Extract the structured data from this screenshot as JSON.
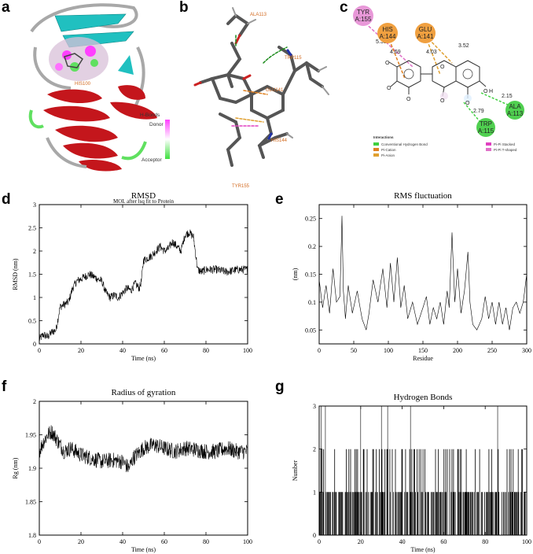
{
  "panel_letters": {
    "a": "a",
    "b": "b",
    "c": "c",
    "d": "d",
    "e": "e",
    "f": "f",
    "g": "g"
  },
  "panel_a": {
    "hbonds_title": "H-Bonds",
    "donor_label": "Donor",
    "acceptor_label": "Acceptor",
    "colors": {
      "helix": "#c4161c",
      "sheet": "#20c0c0",
      "coil": "#a8a8a8",
      "donor": "#ff40ff",
      "acceptor": "#40e040"
    }
  },
  "panel_b": {
    "residue_labels": [
      "ALA113",
      "TRP115",
      "GLU141",
      "HIS144",
      "TYR155"
    ]
  },
  "panel_c": {
    "residues": [
      {
        "name": "TYR",
        "id": "A:155",
        "color": "#e898d8"
      },
      {
        "name": "HIS",
        "id": "A:144",
        "color": "#f0a040"
      },
      {
        "name": "GLU",
        "id": "A:141",
        "color": "#f0a040"
      },
      {
        "name": "ALA",
        "id": "A:113",
        "color": "#50d050"
      },
      {
        "name": "TRP",
        "id": "A:115",
        "color": "#50d050"
      }
    ],
    "distances": [
      "5.38",
      "4.69",
      "4.03",
      "3.52",
      "2.15",
      "2.79"
    ],
    "atoms": {
      "hydrogen": "H",
      "oxygen": "O"
    },
    "legend_title": "Interactions",
    "legend": [
      {
        "label": "Conventional Hydrogen Bond",
        "color": "#40d040"
      },
      {
        "label": "Pi-Cation",
        "color": "#e08020"
      },
      {
        "label": "Pi-Anion",
        "color": "#e0a030"
      },
      {
        "label": "Pi-Pi Stacked",
        "color": "#e040c0"
      },
      {
        "label": "Pi-Pi T-shaped",
        "color": "#e070c8"
      }
    ]
  },
  "chart_data": [
    {
      "id": "d",
      "type": "line",
      "title": "RMSD",
      "subtitle": "MOL after lsq fit to Protein",
      "xlabel": "Time (ns)",
      "ylabel": "RMSD (nm)",
      "xlim": [
        0,
        100
      ],
      "ylim": [
        0,
        3
      ],
      "xticks": [
        0,
        20,
        40,
        60,
        80,
        100
      ],
      "yticks": [
        0,
        0.5,
        1,
        1.5,
        2,
        2.5,
        3
      ],
      "x": [
        0,
        2,
        4,
        6,
        8,
        9,
        10,
        12,
        14,
        16,
        18,
        20,
        22,
        24,
        26,
        28,
        30,
        32,
        34,
        36,
        38,
        40,
        42,
        44,
        46,
        48,
        49,
        50,
        52,
        54,
        56,
        58,
        60,
        62,
        64,
        66,
        68,
        70,
        72,
        74,
        75,
        76,
        78,
        80,
        85,
        90,
        95,
        100
      ],
      "y": [
        0.1,
        0.2,
        0.15,
        0.25,
        0.3,
        0.55,
        0.8,
        0.85,
        0.9,
        1.2,
        1.35,
        1.4,
        1.45,
        1.5,
        1.45,
        1.4,
        1.35,
        1.1,
        1.0,
        1.05,
        1.0,
        1.1,
        1.2,
        1.15,
        1.3,
        1.2,
        1.35,
        1.8,
        1.85,
        1.9,
        2.0,
        2.1,
        2.0,
        2.05,
        2.2,
        2.1,
        2.0,
        2.35,
        2.4,
        2.3,
        1.95,
        1.6,
        1.55,
        1.6,
        1.6,
        1.55,
        1.6,
        1.6
      ],
      "noise": 0.09
    },
    {
      "id": "e",
      "type": "line",
      "title": "RMS fluctuation",
      "xlabel": "Residue",
      "ylabel": "(nm)",
      "xlim": [
        0,
        300
      ],
      "ylim": [
        0.025,
        0.275
      ],
      "xticks": [
        0,
        50,
        100,
        150,
        200,
        250,
        300
      ],
      "yticks": [
        0.05,
        0.1,
        0.15,
        0.2,
        0.25
      ],
      "x": [
        0,
        5,
        10,
        15,
        20,
        25,
        30,
        33,
        35,
        38,
        42,
        48,
        55,
        62,
        68,
        72,
        78,
        85,
        92,
        98,
        103,
        108,
        113,
        118,
        123,
        128,
        135,
        142,
        150,
        155,
        160,
        165,
        170,
        175,
        180,
        185,
        188,
        192,
        196,
        200,
        205,
        210,
        215,
        218,
        222,
        228,
        235,
        240,
        245,
        250,
        255,
        260,
        265,
        270,
        275,
        280,
        285,
        290,
        295,
        300
      ],
      "y": [
        0.14,
        0.09,
        0.13,
        0.08,
        0.16,
        0.1,
        0.11,
        0.255,
        0.12,
        0.07,
        0.13,
        0.08,
        0.12,
        0.07,
        0.05,
        0.08,
        0.14,
        0.1,
        0.16,
        0.09,
        0.17,
        0.1,
        0.18,
        0.09,
        0.13,
        0.07,
        0.1,
        0.06,
        0.09,
        0.11,
        0.06,
        0.09,
        0.07,
        0.1,
        0.06,
        0.12,
        0.09,
        0.225,
        0.1,
        0.16,
        0.08,
        0.12,
        0.19,
        0.1,
        0.06,
        0.05,
        0.07,
        0.11,
        0.07,
        0.1,
        0.06,
        0.1,
        0.06,
        0.09,
        0.05,
        0.09,
        0.1,
        0.08,
        0.1,
        0.15
      ],
      "noise": 0.0
    },
    {
      "id": "f",
      "type": "line",
      "title": "Radius of gyration",
      "xlabel": "Time (ns)",
      "ylabel": "Rg (nm)",
      "xlim": [
        0,
        100
      ],
      "ylim": [
        1.8,
        2
      ],
      "xticks": [
        0,
        20,
        40,
        60,
        80,
        100
      ],
      "yticks": [
        1.8,
        1.85,
        1.9,
        1.95,
        2
      ],
      "x": [
        0,
        2,
        4,
        6,
        8,
        10,
        12,
        15,
        20,
        25,
        30,
        35,
        40,
        43,
        45,
        50,
        55,
        60,
        65,
        70,
        75,
        80,
        85,
        90,
        95,
        100
      ],
      "y": [
        1.925,
        1.94,
        1.95,
        1.955,
        1.945,
        1.935,
        1.925,
        1.93,
        1.92,
        1.915,
        1.91,
        1.912,
        1.91,
        1.9,
        1.915,
        1.93,
        1.935,
        1.93,
        1.925,
        1.93,
        1.928,
        1.925,
        1.925,
        1.93,
        1.925,
        1.925
      ],
      "noise": 0.012
    },
    {
      "id": "g",
      "type": "bar",
      "title": "Hydrogen Bonds",
      "xlabel": "Time (ns)",
      "ylabel": "Number",
      "xlim": [
        0,
        100
      ],
      "ylim": [
        0,
        3
      ],
      "xticks": [
        0,
        20,
        40,
        60,
        80,
        100
      ],
      "yticks": [
        0,
        1,
        2,
        3
      ],
      "x_three": [
        1,
        3,
        20,
        30,
        33,
        44,
        86
      ],
      "density_one": 0.75,
      "density_two": 0.25
    }
  ]
}
